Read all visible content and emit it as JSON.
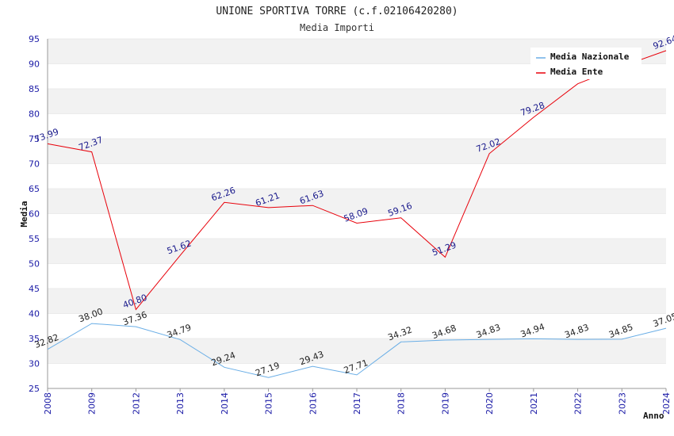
{
  "colors": {
    "nazionale": "#6aaee6",
    "ente": "#e8000a",
    "band": "#f2f2f2",
    "grid": "#dddddd",
    "axis": "#999999",
    "tick_text": "#1a1aa6"
  },
  "chart_data": {
    "type": "line",
    "title": "UNIONE SPORTIVA TORRE (c.f.02106420280)",
    "subtitle": "Media Importi",
    "xlabel": "Anno",
    "ylabel": "Media",
    "ylim": [
      25,
      95
    ],
    "yticks": [
      25,
      30,
      35,
      40,
      45,
      50,
      55,
      60,
      65,
      70,
      75,
      80,
      85,
      90,
      95
    ],
    "grid": true,
    "legend_position": "top-right",
    "categories": [
      "2008",
      "2009",
      "2012",
      "2013",
      "2014",
      "2015",
      "2016",
      "2017",
      "2018",
      "2019",
      "2020",
      "2021",
      "2022",
      "2023",
      "2024"
    ],
    "series": [
      {
        "name": "Media Nazionale",
        "color": "#6aaee6",
        "values": [
          32.82,
          38.0,
          37.36,
          34.79,
          29.24,
          27.19,
          29.43,
          27.71,
          34.32,
          34.68,
          34.83,
          34.94,
          34.83,
          34.85,
          37.05
        ],
        "labels": [
          "32.82",
          "38.00",
          "37.36",
          "34.79",
          "29.24",
          "27.19",
          "29.43",
          "27.71",
          "34.32",
          "34.68",
          "34.83",
          "34.94",
          "34.83",
          "34.85",
          "37.05"
        ]
      },
      {
        "name": "Media Ente",
        "color": "#e8000a",
        "values": [
          73.99,
          72.37,
          40.8,
          51.62,
          62.26,
          61.21,
          61.63,
          58.09,
          59.16,
          51.29,
          72.02,
          79.28,
          86.0,
          89.5,
          92.64
        ],
        "labels": [
          "73.99",
          "72.37",
          "40.80",
          "51.62",
          "62.26",
          "61.21",
          "61.63",
          "58.09",
          "59.16",
          "51.29",
          "72.02",
          "79.28",
          "",
          "",
          "92.64"
        ]
      }
    ]
  }
}
